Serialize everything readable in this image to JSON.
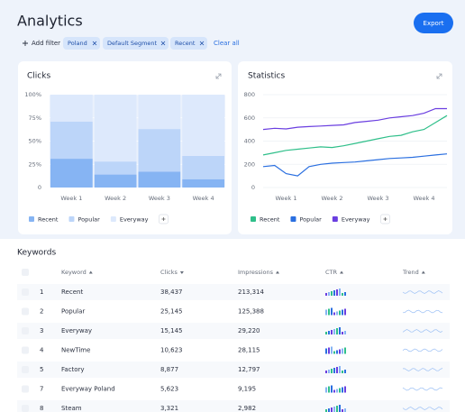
{
  "header": {
    "title": "Analytics",
    "export": "Export"
  },
  "filters": {
    "add": "Add filter",
    "chips": [
      "Poland",
      "Default Segment",
      "Recent"
    ],
    "clear": "Clear all"
  },
  "charts": [
    {
      "type": "bar",
      "stacked": true,
      "title": "Clicks",
      "categories": [
        "Week 1",
        "Week 2",
        "Week 3",
        "Week 4"
      ],
      "series": [
        {
          "name": "Recent",
          "color": "#86b4f3",
          "values": [
            31,
            14,
            17,
            9
          ]
        },
        {
          "name": "Popular",
          "color": "#bcd5f9",
          "values": [
            40,
            14,
            46,
            25
          ]
        },
        {
          "name": "Everyway",
          "color": "#dde9fc",
          "values": [
            29,
            72,
            37,
            66
          ]
        }
      ],
      "ylim": [
        0,
        100
      ],
      "yticks": [
        0,
        {
          "value": 25,
          "label": "25%"
        },
        {
          "value": 50,
          "label": "50%"
        },
        {
          "value": 75,
          "label": "75%"
        },
        {
          "value": 100,
          "label": "100%"
        }
      ],
      "grid": true,
      "legend": "bottom-left"
    },
    {
      "type": "line",
      "title": "Statistics",
      "x": [
        0,
        1,
        2,
        3,
        4,
        5,
        6,
        7,
        8,
        9,
        10,
        11,
        12,
        13,
        14,
        15,
        16
      ],
      "xlim": [
        0,
        16
      ],
      "xticks": [
        {
          "value": 2,
          "label": "Week 1"
        },
        {
          "value": 6,
          "label": "Week 2"
        },
        {
          "value": 10,
          "label": "Week 3"
        },
        {
          "value": 14,
          "label": "Week 4"
        }
      ],
      "series": [
        {
          "name": "Recent",
          "color": "#2fbf8a",
          "values": [
            280,
            300,
            320,
            330,
            340,
            350,
            345,
            360,
            380,
            400,
            420,
            440,
            450,
            480,
            500,
            560,
            620
          ]
        },
        {
          "name": "Popular",
          "color": "#2a6fe0",
          "values": [
            180,
            190,
            120,
            100,
            180,
            200,
            210,
            215,
            220,
            230,
            240,
            250,
            255,
            260,
            270,
            280,
            290
          ]
        },
        {
          "name": "Everyway",
          "color": "#6a3ee0",
          "values": [
            500,
            510,
            505,
            520,
            525,
            530,
            535,
            540,
            560,
            570,
            580,
            600,
            610,
            620,
            640,
            680,
            680
          ]
        }
      ],
      "ylim": [
        0,
        800
      ],
      "yticks": [
        0,
        200,
        400,
        600,
        800
      ],
      "grid": true,
      "legend": "bottom-left"
    }
  ],
  "table": {
    "title": "Keywords",
    "columns": [
      "Keyword",
      "Clicks",
      "Impressions",
      "CTR",
      "Trend"
    ],
    "rows": [
      [
        "1",
        "Recent",
        "38,437",
        "213,314"
      ],
      [
        "2",
        "Popular",
        "25,145",
        "125,388"
      ],
      [
        "3",
        "Everyway",
        "15,145",
        "29,220"
      ],
      [
        "4",
        "NewTime",
        "10,623",
        "28,115"
      ],
      [
        "5",
        "Factory",
        "8,877",
        "12,797"
      ],
      [
        "7",
        "Everyway Poland",
        "5,623",
        "9,195"
      ],
      [
        "8",
        "Steam",
        "3,321",
        "2,982"
      ]
    ]
  }
}
